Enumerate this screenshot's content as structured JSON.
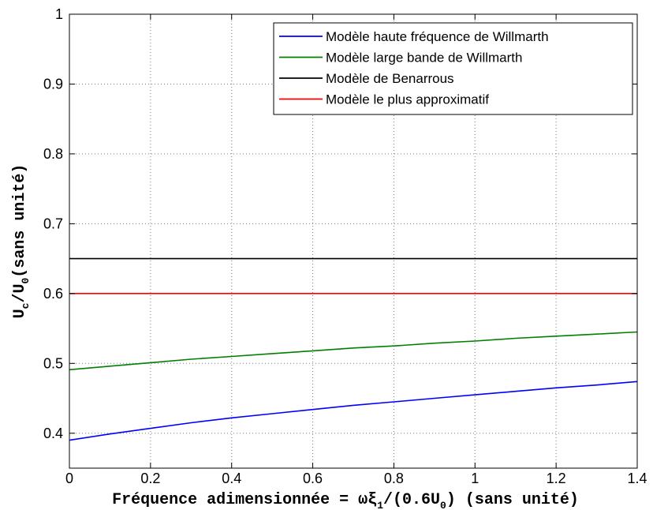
{
  "chart_data": {
    "type": "line",
    "xlabel": "Fréquence adimensionnée = ωξ1/(0.6U0) (sans unité)",
    "xlabel_parts": {
      "pre": "Fréquence adimensionnée = ωξ",
      "sub1": "1",
      "mid": "/(0.6U",
      "sub2": "0",
      "post": ") (sans unité)"
    },
    "ylabel": "Uc/U0(sans unité)",
    "ylabel_parts": {
      "pre": "U",
      "sub1": "c",
      "mid": "/U",
      "sub2": "0",
      "post": "(sans unité)"
    },
    "xlim": [
      0,
      1.4
    ],
    "ylim": [
      0.35,
      1
    ],
    "x_ticks": [
      0,
      0.2,
      0.4,
      0.6,
      0.8,
      1,
      1.2,
      1.4
    ],
    "x_tick_labels": [
      "0",
      "0.2",
      "0.4",
      "0.6",
      "0.8",
      "1",
      "1.2",
      "1.4"
    ],
    "y_ticks": [
      0.4,
      0.5,
      0.6,
      0.7,
      0.8,
      0.9,
      1
    ],
    "y_tick_labels": [
      "0.4",
      "0.5",
      "0.6",
      "0.7",
      "0.8",
      "0.9",
      "1"
    ],
    "grid": true,
    "legend_position": "top-right",
    "series": [
      {
        "name": "Modèle haute fréquence de Willmarth",
        "color": "#0000ff",
        "x": [
          0,
          0.1,
          0.2,
          0.3,
          0.4,
          0.5,
          0.6,
          0.7,
          0.8,
          0.9,
          1.0,
          1.1,
          1.2,
          1.3,
          1.4
        ],
        "y": [
          0.39,
          0.399,
          0.407,
          0.415,
          0.422,
          0.428,
          0.434,
          0.44,
          0.445,
          0.45,
          0.455,
          0.46,
          0.465,
          0.469,
          0.474
        ]
      },
      {
        "name": "Modèle large bande de Willmarth",
        "color": "#008000",
        "x": [
          0,
          0.1,
          0.2,
          0.3,
          0.4,
          0.5,
          0.6,
          0.7,
          0.8,
          0.9,
          1.0,
          1.1,
          1.2,
          1.3,
          1.4
        ],
        "y": [
          0.491,
          0.496,
          0.501,
          0.506,
          0.51,
          0.514,
          0.518,
          0.522,
          0.525,
          0.529,
          0.532,
          0.536,
          0.539,
          0.542,
          0.545
        ]
      },
      {
        "name": "Modèle de Benarrous",
        "color": "#000000",
        "x": [
          0,
          1.4
        ],
        "y": [
          0.65,
          0.65
        ]
      },
      {
        "name": "Modèle le plus approximatif",
        "color": "#ff0000",
        "x": [
          0,
          1.4
        ],
        "y": [
          0.6,
          0.6
        ]
      }
    ]
  }
}
